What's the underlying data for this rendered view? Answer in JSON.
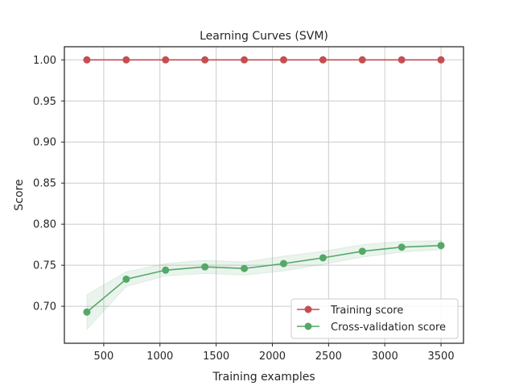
{
  "chart_data": {
    "type": "line",
    "title": "Learning Curves (SVM)",
    "xlabel": "Training examples",
    "ylabel": "Score",
    "xlim": [
      150,
      3700
    ],
    "ylim": [
      0.655,
      1.016
    ],
    "xticks": [
      500,
      1000,
      1500,
      2000,
      2500,
      3000,
      3500
    ],
    "yticks": [
      0.7,
      0.75,
      0.8,
      0.85,
      0.9,
      0.95,
      1.0
    ],
    "grid": true,
    "legend_position": "lower-right",
    "x": [
      350,
      700,
      1050,
      1400,
      1750,
      2100,
      2450,
      2800,
      3150,
      3500
    ],
    "series": [
      {
        "name": "Training score",
        "color": "#c44e52",
        "marker": "circle",
        "values": [
          1.0,
          1.0,
          1.0,
          1.0,
          1.0,
          1.0,
          1.0,
          1.0,
          1.0,
          1.0
        ],
        "band_lower": [
          1.0,
          1.0,
          1.0,
          1.0,
          1.0,
          1.0,
          1.0,
          1.0,
          1.0,
          1.0
        ],
        "band_upper": [
          1.0,
          1.0,
          1.0,
          1.0,
          1.0,
          1.0,
          1.0,
          1.0,
          1.0,
          1.0
        ]
      },
      {
        "name": "Cross-validation score",
        "color": "#55a868",
        "marker": "circle",
        "values": [
          0.693,
          0.733,
          0.744,
          0.748,
          0.746,
          0.752,
          0.759,
          0.767,
          0.772,
          0.774
        ],
        "band_lower": [
          0.672,
          0.724,
          0.737,
          0.74,
          0.738,
          0.743,
          0.751,
          0.76,
          0.766,
          0.769
        ],
        "band_upper": [
          0.714,
          0.742,
          0.752,
          0.756,
          0.754,
          0.761,
          0.767,
          0.775,
          0.779,
          0.78
        ]
      }
    ]
  }
}
